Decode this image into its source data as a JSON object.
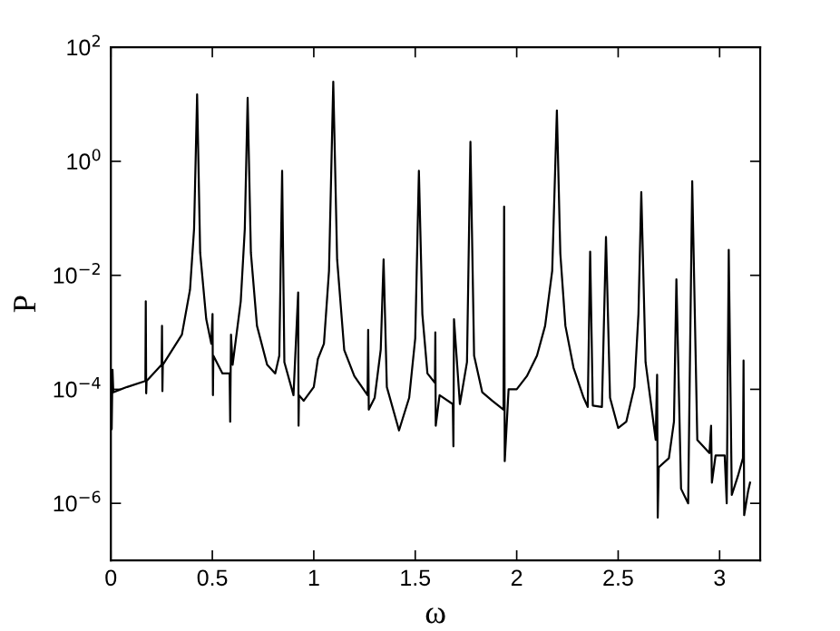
{
  "chart_data": {
    "type": "line",
    "xlabel": "ω",
    "ylabel": "P",
    "log": "y",
    "grid": false,
    "legend": false,
    "marker": "none",
    "line_style": "solid",
    "xlim": [
      0,
      3.2
    ],
    "xticks": [
      0,
      0.5,
      1,
      1.5,
      2,
      2.5,
      3
    ],
    "ylim": [
      1e-07,
      100
    ],
    "yticks": [
      {
        "value": 100,
        "label": "10$^{2}$"
      },
      {
        "value": 1,
        "label": "10$^{0}$"
      },
      {
        "value": 0.01,
        "label": "10$^{−2}$"
      },
      {
        "value": 0.0001,
        "label": "10$^{−4}$"
      },
      {
        "value": 1e-06,
        "label": "10$^{−6}$"
      }
    ],
    "series": [
      {
        "color": "#000000",
        "x": [
          0.0,
          0.004,
          0.008,
          0.012,
          0.08,
          0.17,
          0.172,
          0.174,
          0.176,
          0.25,
          0.252,
          0.254,
          0.256,
          0.35,
          0.39,
          0.41,
          0.425,
          0.44,
          0.47,
          0.495,
          0.501,
          0.503,
          0.505,
          0.55,
          0.585,
          0.588,
          0.592,
          0.6,
          0.64,
          0.66,
          0.674,
          0.69,
          0.72,
          0.77,
          0.81,
          0.83,
          0.844,
          0.855,
          0.9,
          0.923,
          0.925,
          0.927,
          0.95,
          1.0,
          1.02,
          1.05,
          1.075,
          1.096,
          1.115,
          1.15,
          1.2,
          1.265,
          1.268,
          1.271,
          1.3,
          1.33,
          1.344,
          1.36,
          1.42,
          1.47,
          1.5,
          1.518,
          1.535,
          1.56,
          1.597,
          1.599,
          1.601,
          1.62,
          1.685,
          1.688,
          1.691,
          1.72,
          1.755,
          1.772,
          1.79,
          1.83,
          1.88,
          1.935,
          1.938,
          1.941,
          1.96,
          2.0,
          2.05,
          2.1,
          2.14,
          2.175,
          2.198,
          2.215,
          2.24,
          2.28,
          2.33,
          2.35,
          2.362,
          2.375,
          2.42,
          2.44,
          2.46,
          2.5,
          2.54,
          2.58,
          2.6,
          2.614,
          2.635,
          2.685,
          2.692,
          2.695,
          2.7,
          2.75,
          2.775,
          2.787,
          2.81,
          2.845,
          2.865,
          2.89,
          2.95,
          2.958,
          2.962,
          2.98,
          3.025,
          3.035,
          3.045,
          3.06,
          3.09,
          3.115,
          3.118,
          3.121,
          3.14,
          3.15
        ],
        "values": [
          0.00018,
          2e-05,
          0.00022,
          8.9e-05,
          0.00011,
          0.00014,
          0.0035,
          8.5e-05,
          0.00014,
          0.00027,
          0.0013,
          9.3e-05,
          0.00027,
          0.00091,
          0.0056,
          0.065,
          15,
          0.025,
          0.0017,
          0.00063,
          0.0021,
          7.9e-05,
          0.00039,
          0.00019,
          0.00019,
          2.7e-05,
          0.00091,
          0.00027,
          0.0035,
          0.065,
          13,
          0.025,
          0.0013,
          0.00027,
          0.00019,
          0.00039,
          0.68,
          0.0003,
          7.9e-05,
          0.005,
          2.3e-05,
          7.9e-05,
          6.3e-05,
          0.00011,
          0.00034,
          0.00063,
          0.012,
          25,
          0.019,
          0.00049,
          0.00017,
          7.9e-05,
          0.0011,
          4.4e-05,
          7.1e-05,
          0.0005,
          0.019,
          0.00011,
          1.9e-05,
          7.1e-05,
          0.00079,
          0.68,
          0.0021,
          0.00019,
          0.00013,
          0.001,
          2.3e-05,
          7.9e-05,
          5.5e-05,
          1e-05,
          0.0017,
          5.5e-05,
          0.0003,
          2.2,
          0.00039,
          8.9e-05,
          6.3e-05,
          4.4e-05,
          0.16,
          5.5e-06,
          0.0001,
          0.0001,
          0.00017,
          0.00039,
          0.0013,
          0.012,
          7.8,
          0.024,
          0.0013,
          0.00024,
          7.1e-05,
          4.9e-05,
          0.026,
          5.2e-05,
          4.9e-05,
          0.047,
          7.1e-05,
          2.1e-05,
          2.7e-05,
          0.00011,
          0.0021,
          0.29,
          0.0003,
          1.3e-05,
          0.00018,
          5.6e-07,
          4.3e-06,
          6.2e-06,
          2.7e-05,
          0.0085,
          1.8e-06,
          1e-06,
          0.45,
          1.3e-05,
          7.6e-06,
          2.3e-05,
          2.3e-06,
          6.9e-06,
          6.9e-06,
          1e-06,
          0.028,
          1.4e-06,
          3e-06,
          6.2e-06,
          0.00032,
          6.2e-07,
          1.6e-06,
          2.3e-06
        ]
      }
    ]
  }
}
